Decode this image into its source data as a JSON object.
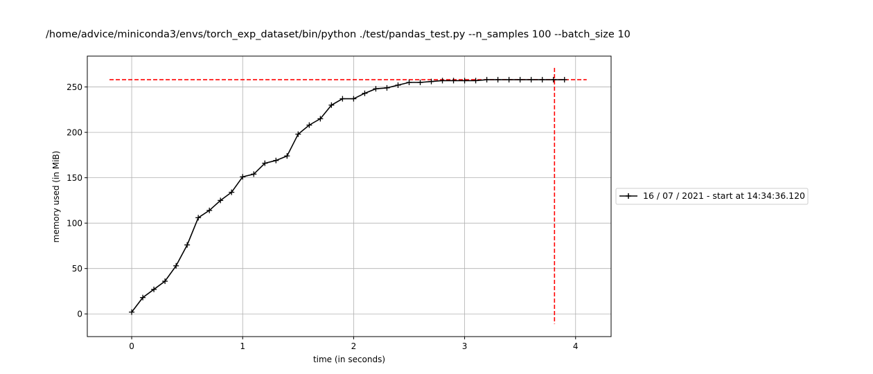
{
  "chart_data": {
    "type": "line",
    "title": "/home/advice/miniconda3/envs/torch_exp_dataset/bin/python ./test/pandas_test.py --n_samples 100 --batch_size 10",
    "xlabel": "time (in seconds)",
    "ylabel": "memory used (in MiB)",
    "xlim": [
      -0.4,
      4.32
    ],
    "ylim": [
      -25,
      284
    ],
    "xticks": [
      0,
      1,
      2,
      3,
      4
    ],
    "yticks": [
      0,
      50,
      100,
      150,
      200,
      250
    ],
    "xtick_labels": [
      "0",
      "1",
      "2",
      "3",
      "4"
    ],
    "ytick_labels": [
      "0",
      "50",
      "100",
      "150",
      "200",
      "250"
    ],
    "grid": true,
    "legend_placement": "outside-right",
    "series": [
      {
        "name": "16 / 07 / 2021 - start at 14:34:36.120",
        "color": "#000000",
        "marker": "plus",
        "x": [
          0,
          0.1,
          0.2,
          0.3,
          0.4,
          0.5,
          0.6,
          0.7,
          0.8,
          0.9,
          1.0,
          1.1,
          1.2,
          1.3,
          1.4,
          1.5,
          1.6,
          1.7,
          1.8,
          1.9,
          2.0,
          2.1,
          2.2,
          2.3,
          2.4,
          2.5,
          2.6,
          2.7,
          2.8,
          2.9,
          3.0,
          3.1,
          3.2,
          3.3,
          3.4,
          3.5,
          3.6,
          3.7,
          3.8,
          3.9
        ],
        "y": [
          2,
          18,
          27,
          36,
          53,
          76,
          106,
          114,
          125,
          134,
          151,
          154,
          166,
          169,
          174,
          198,
          208,
          215,
          230,
          237,
          237,
          243,
          248,
          249,
          252,
          255,
          255,
          256,
          257,
          257,
          257,
          257,
          258,
          258,
          258,
          258,
          258,
          258,
          258,
          258
        ]
      }
    ],
    "reference_lines": [
      {
        "orientation": "horizontal",
        "value": 258,
        "from": -0.2,
        "to": 4.1,
        "color": "#ff0000",
        "style": "dashed"
      },
      {
        "orientation": "vertical",
        "value": 3.81,
        "from": -11,
        "to": 271,
        "color": "#ff0000",
        "style": "dashed"
      }
    ]
  }
}
